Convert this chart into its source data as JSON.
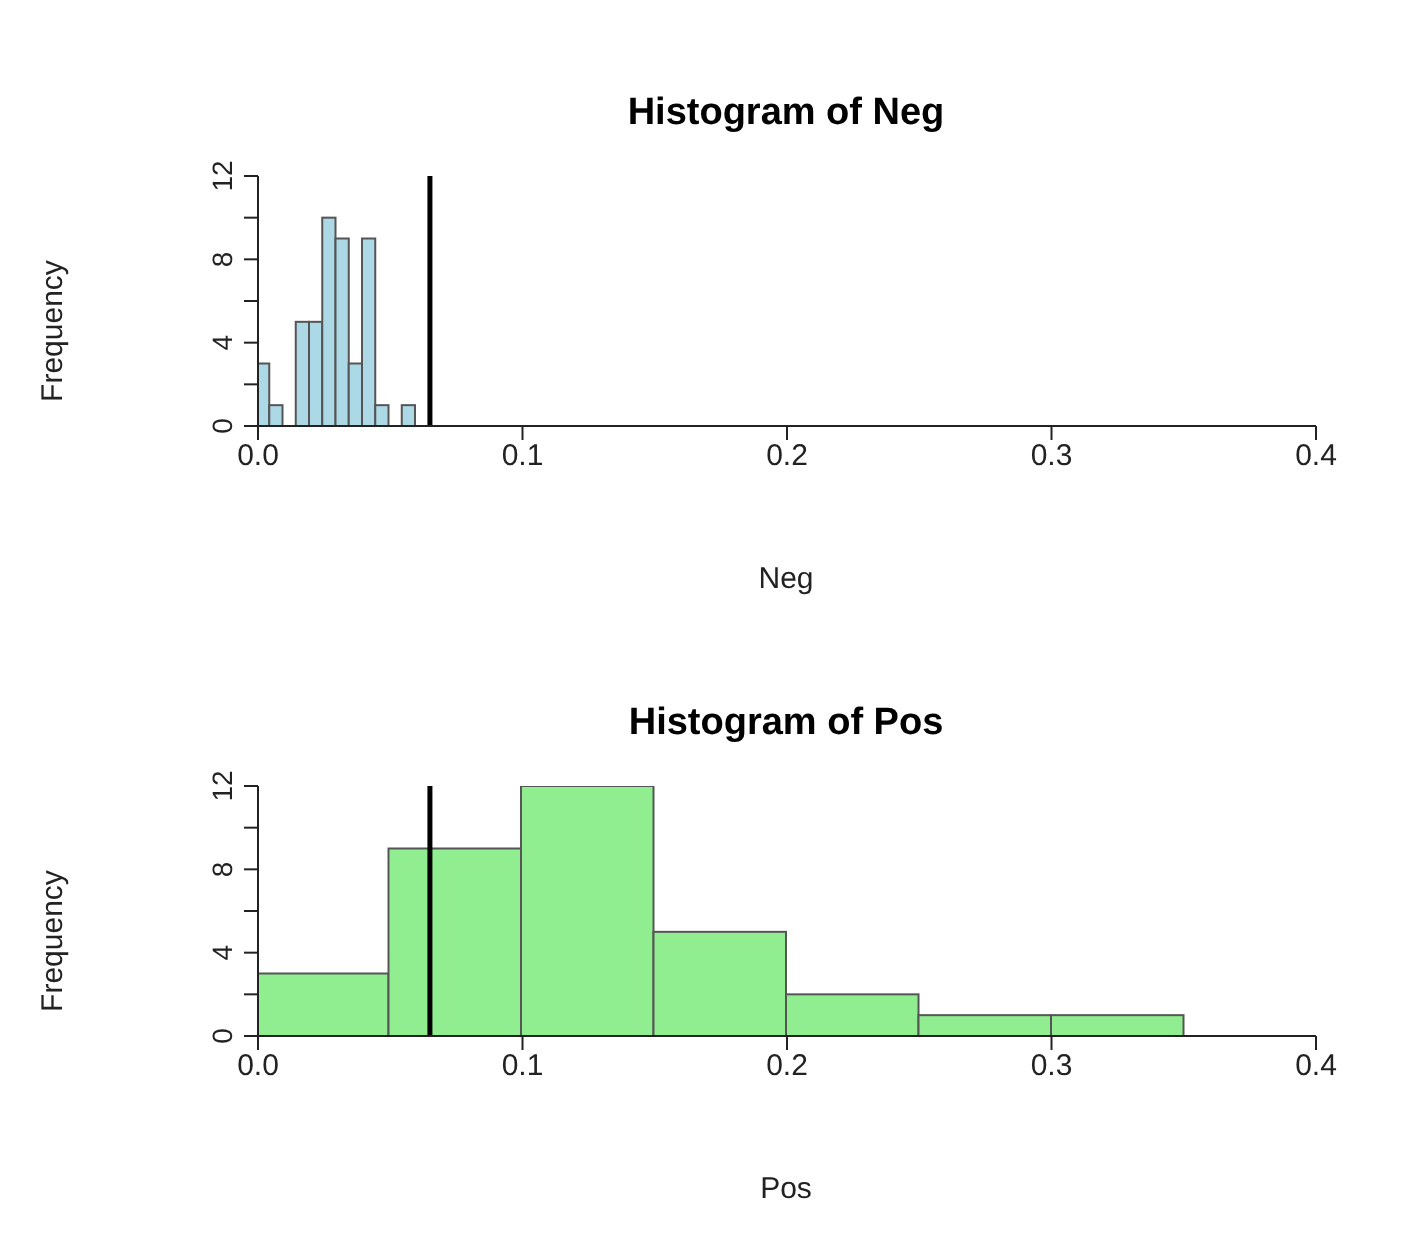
{
  "chart_data": [
    {
      "type": "histogram",
      "title": "Histogram of Neg",
      "xlabel": "Neg",
      "ylabel": "Frequency",
      "color": "#add8e6",
      "bins": [
        0,
        0.005,
        0.01,
        0.015,
        0.02,
        0.025,
        0.03,
        0.035,
        0.04,
        0.045,
        0.05,
        0.055,
        0.06
      ],
      "values": [
        3,
        1,
        0,
        5,
        5,
        10,
        9,
        3,
        9,
        1,
        0,
        1
      ],
      "xlim": [
        0,
        0.4
      ],
      "xticks": [
        {
          "value": 0,
          "label": "0.0"
        },
        0.1,
        0.2,
        0.3,
        0.4
      ],
      "ylim": [
        0,
        12
      ],
      "yticks": [
        0,
        {
          "value": 2,
          "label": null
        },
        4,
        {
          "value": 6,
          "label": null
        },
        8,
        {
          "value": 10,
          "label": null
        },
        12
      ],
      "ref_lines": [
        {
          "axis": "x",
          "value": 0.065,
          "color": "#000000"
        }
      ]
    },
    {
      "type": "histogram",
      "title": "Histogram of Pos",
      "xlabel": "Pos",
      "ylabel": "Frequency",
      "color": "#90ee90",
      "bins": [
        0,
        0.05,
        0.1,
        0.15,
        0.2,
        0.25,
        0.3,
        0.35
      ],
      "values": [
        3,
        9,
        12,
        5,
        2,
        1,
        1
      ],
      "xlim": [
        0,
        0.4
      ],
      "xticks": [
        {
          "value": 0,
          "label": "0.0"
        },
        0.1,
        0.2,
        0.3,
        0.4
      ],
      "ylim": [
        0,
        12
      ],
      "yticks": [
        0,
        {
          "value": 2,
          "label": null
        },
        4,
        {
          "value": 6,
          "label": null
        },
        8,
        {
          "value": 10,
          "label": null
        },
        12
      ],
      "ref_lines": [
        {
          "axis": "x",
          "value": 0.065,
          "color": "#000000"
        }
      ]
    }
  ]
}
